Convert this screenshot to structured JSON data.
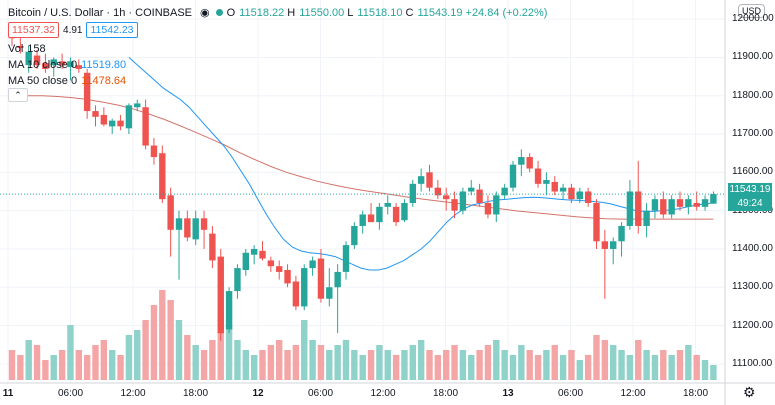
{
  "header": {
    "title": "Bitcoin / U.S. Dollar · 1h · COINBASE",
    "open_label": "O",
    "open": "11518.22",
    "high_label": "H",
    "high": "11550.00",
    "low_label": "L",
    "low": "11518.10",
    "close_label": "C",
    "close": "11543.19",
    "change": "+24.84 (+0.22%)",
    "bid": "11537.32",
    "spread": "4.91",
    "ask": "11542.23"
  },
  "indicators": {
    "vol_label": "Vol",
    "vol_value": "158",
    "ma10_label": "MA 10 close 0",
    "ma10_value": "11519.80",
    "ma50_label": "MA 50 close 0",
    "ma50_value": "11478.64"
  },
  "price_scale": {
    "currency": "USD",
    "last_price": "11543.19",
    "countdown": "49:24",
    "ticks": [
      "12000.00",
      "11900.00",
      "11800.00",
      "11700.00",
      "11600.00",
      "11500.00",
      "11400.00",
      "11300.00",
      "11200.00",
      "11100.00"
    ]
  },
  "time_scale": {
    "ticks": [
      "11",
      "06:00",
      "12:00",
      "18:00",
      "12",
      "06:00",
      "12:00",
      "18:00",
      "13",
      "06:00",
      "12:00",
      "18:00"
    ]
  },
  "colors": {
    "up": "#26a69a",
    "down": "#ef5350",
    "ma10": "#2196f3",
    "ma50": "#c0392b",
    "vol_up": "#8fd2c9",
    "vol_down": "#f4a6a6"
  },
  "chart_data": {
    "type": "candlestick",
    "title": "Bitcoin / U.S. Dollar · 1h · COINBASE",
    "ylim": [
      11050,
      12050
    ],
    "candles": [
      {
        "o": 11960,
        "h": 11990,
        "l": 11930,
        "c": 11950
      },
      {
        "o": 11930,
        "h": 11955,
        "l": 11910,
        "c": 11925
      },
      {
        "o": 11880,
        "h": 11930,
        "l": 11860,
        "c": 11915
      },
      {
        "o": 11905,
        "h": 11920,
        "l": 11870,
        "c": 11880
      },
      {
        "o": 11885,
        "h": 11910,
        "l": 11860,
        "c": 11870
      },
      {
        "o": 11880,
        "h": 11900,
        "l": 11850,
        "c": 11895
      },
      {
        "o": 11890,
        "h": 11910,
        "l": 11870,
        "c": 11880
      },
      {
        "o": 11875,
        "h": 11900,
        "l": 11840,
        "c": 11890
      },
      {
        "o": 11880,
        "h": 11895,
        "l": 11860,
        "c": 11870
      },
      {
        "o": 11860,
        "h": 11870,
        "l": 11740,
        "c": 11760
      },
      {
        "o": 11760,
        "h": 11775,
        "l": 11720,
        "c": 11745
      },
      {
        "o": 11750,
        "h": 11770,
        "l": 11720,
        "c": 11725
      },
      {
        "o": 11720,
        "h": 11740,
        "l": 11700,
        "c": 11735
      },
      {
        "o": 11735,
        "h": 11750,
        "l": 11710,
        "c": 11720
      },
      {
        "o": 11715,
        "h": 11780,
        "l": 11700,
        "c": 11775
      },
      {
        "o": 11770,
        "h": 11790,
        "l": 11760,
        "c": 11780
      },
      {
        "o": 11770,
        "h": 11790,
        "l": 11660,
        "c": 11670
      },
      {
        "o": 11670,
        "h": 11690,
        "l": 11620,
        "c": 11640
      },
      {
        "o": 11650,
        "h": 11670,
        "l": 11520,
        "c": 11530
      },
      {
        "o": 11540,
        "h": 11560,
        "l": 11380,
        "c": 11450
      },
      {
        "o": 11450,
        "h": 11500,
        "l": 11320,
        "c": 11480
      },
      {
        "o": 11480,
        "h": 11500,
        "l": 11420,
        "c": 11430
      },
      {
        "o": 11425,
        "h": 11500,
        "l": 11410,
        "c": 11480
      },
      {
        "o": 11480,
        "h": 11500,
        "l": 11400,
        "c": 11450
      },
      {
        "o": 11440,
        "h": 11460,
        "l": 11350,
        "c": 11370
      },
      {
        "o": 11380,
        "h": 11400,
        "l": 11160,
        "c": 11180
      },
      {
        "o": 11190,
        "h": 11300,
        "l": 11180,
        "c": 11290
      },
      {
        "o": 11290,
        "h": 11360,
        "l": 11270,
        "c": 11350
      },
      {
        "o": 11345,
        "h": 11400,
        "l": 11330,
        "c": 11390
      },
      {
        "o": 11385,
        "h": 11410,
        "l": 11360,
        "c": 11400
      },
      {
        "o": 11395,
        "h": 11420,
        "l": 11370,
        "c": 11375
      },
      {
        "o": 11370,
        "h": 11380,
        "l": 11340,
        "c": 11355
      },
      {
        "o": 11355,
        "h": 11370,
        "l": 11320,
        "c": 11340
      },
      {
        "o": 11345,
        "h": 11360,
        "l": 11300,
        "c": 11310
      },
      {
        "o": 11315,
        "h": 11330,
        "l": 11240,
        "c": 11250
      },
      {
        "o": 11250,
        "h": 11360,
        "l": 11240,
        "c": 11350
      },
      {
        "o": 11350,
        "h": 11380,
        "l": 11330,
        "c": 11370
      },
      {
        "o": 11375,
        "h": 11400,
        "l": 11260,
        "c": 11270
      },
      {
        "o": 11270,
        "h": 11350,
        "l": 11250,
        "c": 11300
      },
      {
        "o": 11300,
        "h": 11360,
        "l": 11180,
        "c": 11340
      },
      {
        "o": 11340,
        "h": 11420,
        "l": 11320,
        "c": 11410
      },
      {
        "o": 11410,
        "h": 11470,
        "l": 11400,
        "c": 11460
      },
      {
        "o": 11460,
        "h": 11500,
        "l": 11440,
        "c": 11490
      },
      {
        "o": 11490,
        "h": 11520,
        "l": 11470,
        "c": 11470
      },
      {
        "o": 11470,
        "h": 11520,
        "l": 11450,
        "c": 11510
      },
      {
        "o": 11510,
        "h": 11540,
        "l": 11490,
        "c": 11520
      },
      {
        "o": 11510,
        "h": 11520,
        "l": 11460,
        "c": 11470
      },
      {
        "o": 11475,
        "h": 11530,
        "l": 11470,
        "c": 11520
      },
      {
        "o": 11520,
        "h": 11580,
        "l": 11510,
        "c": 11570
      },
      {
        "o": 11570,
        "h": 11610,
        "l": 11550,
        "c": 11590
      },
      {
        "o": 11600,
        "h": 11620,
        "l": 11550,
        "c": 11560
      },
      {
        "o": 11560,
        "h": 11580,
        "l": 11530,
        "c": 11540
      },
      {
        "o": 11540,
        "h": 11560,
        "l": 11500,
        "c": 11530
      },
      {
        "o": 11530,
        "h": 11550,
        "l": 11480,
        "c": 11500
      },
      {
        "o": 11500,
        "h": 11560,
        "l": 11490,
        "c": 11550
      },
      {
        "o": 11550,
        "h": 11580,
        "l": 11540,
        "c": 11560
      },
      {
        "o": 11555,
        "h": 11570,
        "l": 11510,
        "c": 11520
      },
      {
        "o": 11520,
        "h": 11540,
        "l": 11480,
        "c": 11490
      },
      {
        "o": 11490,
        "h": 11550,
        "l": 11470,
        "c": 11540
      },
      {
        "o": 11540,
        "h": 11570,
        "l": 11530,
        "c": 11560
      },
      {
        "o": 11560,
        "h": 11630,
        "l": 11550,
        "c": 11620
      },
      {
        "o": 11620,
        "h": 11660,
        "l": 11590,
        "c": 11640
      },
      {
        "o": 11640,
        "h": 11650,
        "l": 11600,
        "c": 11610
      },
      {
        "o": 11610,
        "h": 11630,
        "l": 11560,
        "c": 11570
      },
      {
        "o": 11570,
        "h": 11600,
        "l": 11540,
        "c": 11580
      },
      {
        "o": 11575,
        "h": 11590,
        "l": 11540,
        "c": 11550
      },
      {
        "o": 11550,
        "h": 11570,
        "l": 11530,
        "c": 11560
      },
      {
        "o": 11560,
        "h": 11570,
        "l": 11520,
        "c": 11530
      },
      {
        "o": 11530,
        "h": 11560,
        "l": 11520,
        "c": 11550
      },
      {
        "o": 11550,
        "h": 11560,
        "l": 11510,
        "c": 11520
      },
      {
        "o": 11520,
        "h": 11530,
        "l": 11400,
        "c": 11420
      },
      {
        "o": 11420,
        "h": 11450,
        "l": 11270,
        "c": 11400
      },
      {
        "o": 11400,
        "h": 11430,
        "l": 11360,
        "c": 11420
      },
      {
        "o": 11420,
        "h": 11470,
        "l": 11380,
        "c": 11460
      },
      {
        "o": 11460,
        "h": 11580,
        "l": 11450,
        "c": 11550
      },
      {
        "o": 11550,
        "h": 11630,
        "l": 11440,
        "c": 11460
      },
      {
        "o": 11460,
        "h": 11520,
        "l": 11430,
        "c": 11500
      },
      {
        "o": 11500,
        "h": 11540,
        "l": 11480,
        "c": 11530
      },
      {
        "o": 11530,
        "h": 11550,
        "l": 11480,
        "c": 11490
      },
      {
        "o": 11490,
        "h": 11540,
        "l": 11480,
        "c": 11530
      },
      {
        "o": 11530,
        "h": 11550,
        "l": 11500,
        "c": 11510
      },
      {
        "o": 11510,
        "h": 11540,
        "l": 11490,
        "c": 11530
      },
      {
        "o": 11520,
        "h": 11550,
        "l": 11500,
        "c": 11510
      },
      {
        "o": 11510,
        "h": 11540,
        "l": 11500,
        "c": 11530
      },
      {
        "o": 11518.22,
        "h": 11550,
        "l": 11518.1,
        "c": 11543.19
      }
    ],
    "volume": [
      30,
      25,
      40,
      35,
      20,
      25,
      30,
      55,
      30,
      25,
      35,
      40,
      30,
      25,
      45,
      50,
      60,
      75,
      90,
      80,
      60,
      45,
      35,
      30,
      40,
      70,
      55,
      40,
      30,
      25,
      30,
      35,
      40,
      30,
      35,
      60,
      40,
      35,
      30,
      35,
      40,
      30,
      25,
      30,
      35,
      30,
      25,
      30,
      35,
      40,
      30,
      25,
      30,
      35,
      30,
      25,
      30,
      35,
      40,
      30,
      25,
      35,
      30,
      25,
      30,
      35,
      25,
      30,
      20,
      25,
      45,
      40,
      35,
      30,
      25,
      40,
      30,
      25,
      30,
      25,
      30,
      35,
      25,
      20,
      15
    ],
    "ma10": [
      11900,
      11880,
      11860,
      11840,
      11820,
      11805,
      11790,
      11770,
      11745,
      11720,
      11695,
      11670,
      11640,
      11605,
      11570,
      11530,
      11490,
      11455,
      11425,
      11405,
      11395,
      11390,
      11388,
      11385,
      11380,
      11370,
      11360,
      11350,
      11345,
      11345,
      11350,
      11360,
      11370,
      11385,
      11400,
      11420,
      11445,
      11470,
      11490,
      11505,
      11515,
      11520,
      11525,
      11528,
      11530,
      11532,
      11534,
      11535,
      11534,
      11532,
      11530,
      11528,
      11527,
      11526,
      11524,
      11522,
      11518,
      11512,
      11506,
      11500,
      11498,
      11498,
      11500,
      11502,
      11505,
      11510,
      11514,
      11518,
      11520
    ],
    "ma50": [
      11795,
      11800,
      11800,
      11798,
      11795,
      11790,
      11783,
      11775,
      11765,
      11752,
      11738,
      11722,
      11705,
      11688,
      11670,
      11650,
      11632,
      11615,
      11600,
      11588,
      11577,
      11568,
      11560,
      11553,
      11547,
      11541,
      11535,
      11530,
      11525,
      11520,
      11515,
      11510,
      11505,
      11500,
      11496,
      11492,
      11488,
      11484,
      11481,
      11479,
      11478,
      11478,
      11478,
      11478,
      11478,
      11478,
      11478
    ]
  }
}
